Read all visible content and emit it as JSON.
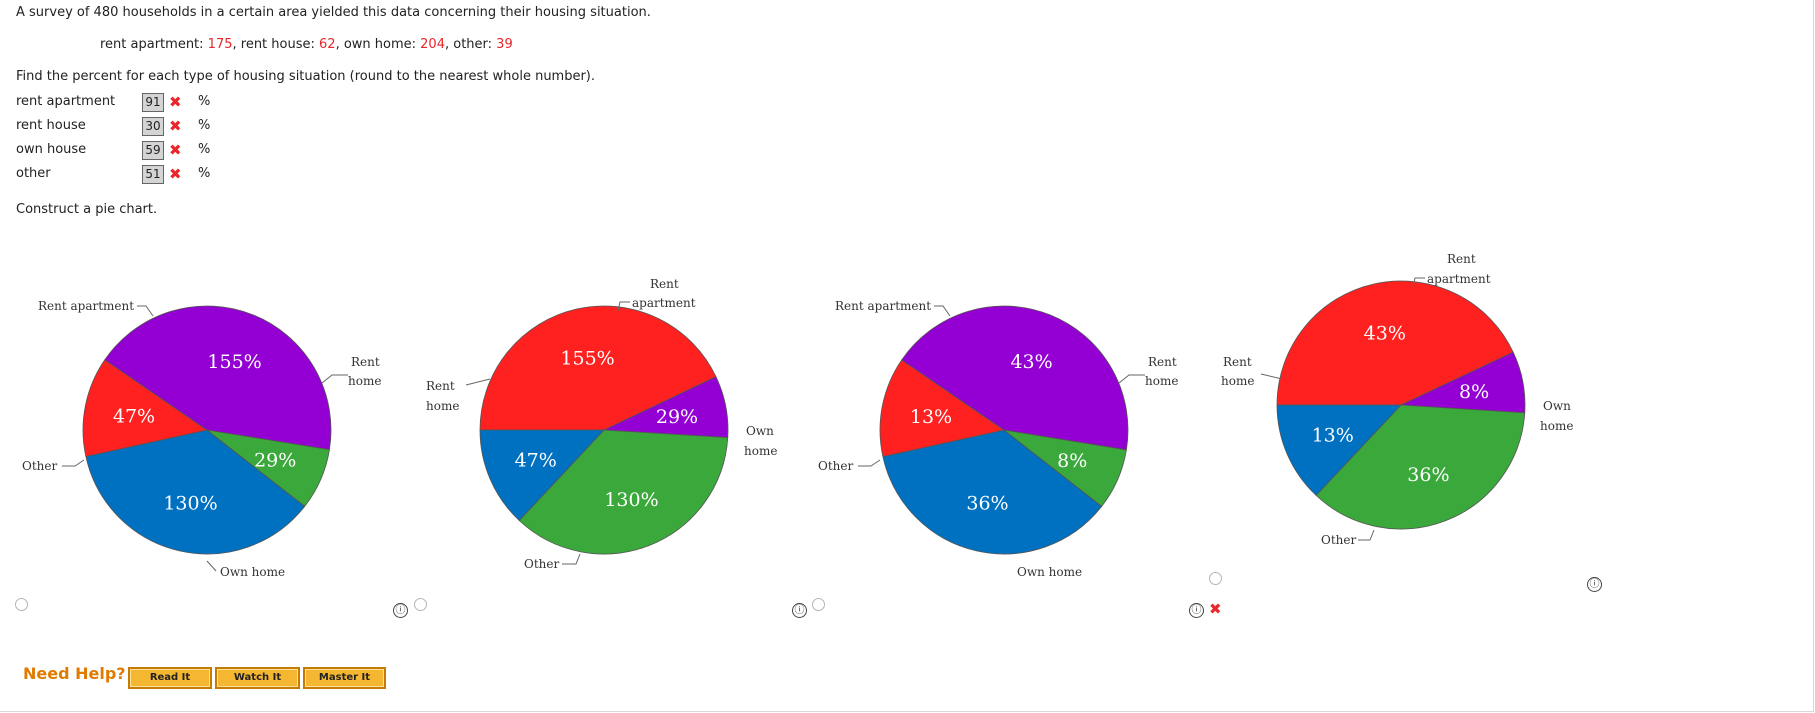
{
  "question": {
    "intro": "A survey of 480 households in a certain area yielded this data concerning their housing situation.",
    "data_line": {
      "ra_label": "rent apartment: ",
      "ra_value": "175",
      "rh_label": ", rent house: ",
      "rh_value": "62",
      "oh_label": ", own home: ",
      "oh_value": "204",
      "ot_label": ", other: ",
      "ot_value": "39"
    },
    "find_text": "Find the percent for each type of housing situation (round to the nearest whole number).",
    "answers": [
      {
        "label": "rent apartment",
        "value": "91",
        "unit": "%"
      },
      {
        "label": "rent house",
        "value": "30",
        "unit": "%"
      },
      {
        "label": "own house",
        "value": "59",
        "unit": "%"
      },
      {
        "label": "other",
        "value": "51",
        "unit": "%"
      }
    ],
    "construct_text": "Construct a pie chart."
  },
  "chart_data": [
    {
      "type": "pie",
      "slices": [
        {
          "name": "Rent apartment",
          "label": "130%",
          "value": 130,
          "color": "#0070c0"
        },
        {
          "name": "Rent home",
          "label": "47%",
          "value": 47,
          "color": "#ff2020"
        },
        {
          "name": "Own home",
          "label": "155%",
          "value": 155,
          "color": "#9400d3"
        },
        {
          "name": "Other",
          "label": "29%",
          "value": 29,
          "color": "#3aa83a"
        }
      ]
    },
    {
      "type": "pie",
      "slices": [
        {
          "name": "Rent apartment",
          "label": "155%",
          "value": 155,
          "color": "#ff2020"
        },
        {
          "name": "Own home",
          "label": "29%",
          "value": 29,
          "color": "#9400d3"
        },
        {
          "name": "Other",
          "label": "130%",
          "value": 130,
          "color": "#3aa83a"
        },
        {
          "name": "Rent home",
          "label": "47%",
          "value": 47,
          "color": "#0070c0"
        }
      ]
    },
    {
      "type": "pie",
      "slices": [
        {
          "name": "Rent apartment",
          "label": "36%",
          "value": 36,
          "color": "#0070c0"
        },
        {
          "name": "Rent home",
          "label": "13%",
          "value": 13,
          "color": "#ff2020"
        },
        {
          "name": "Own home",
          "label": "43%",
          "value": 43,
          "color": "#9400d3"
        },
        {
          "name": "Other",
          "label": "8%",
          "value": 8,
          "color": "#3aa83a"
        }
      ]
    },
    {
      "type": "pie",
      "slices": [
        {
          "name": "Rent apartment",
          "label": "43%",
          "value": 43,
          "color": "#ff2020"
        },
        {
          "name": "Own home",
          "label": "8%",
          "value": 8,
          "color": "#9400d3"
        },
        {
          "name": "Other",
          "label": "36%",
          "value": 36,
          "color": "#3aa83a"
        },
        {
          "name": "Rent home",
          "label": "13%",
          "value": 13,
          "color": "#0070c0"
        }
      ]
    }
  ],
  "chart_labels": {
    "c1": {
      "ra": "Rent apartment",
      "rh1": "Rent",
      "rh2": "home",
      "oh": "Own home",
      "ot": "Other"
    },
    "c2": {
      "ra1": "Rent",
      "ra2": "apartment",
      "rh1": "Rent",
      "rh2": "home",
      "oh1": "Own",
      "oh2": "home",
      "ot": "Other"
    },
    "c3": {
      "ra": "Rent apartment",
      "rh1": "Rent",
      "rh2": "home",
      "oh": "Own home",
      "ot": "Other"
    },
    "c4": {
      "ra1": "Rent",
      "ra2": "apartment",
      "rh1": "Rent",
      "rh2": "home",
      "oh1": "Own",
      "oh2": "home",
      "ot": "Other"
    }
  },
  "help": {
    "label": "Need Help?",
    "read": "Read It",
    "watch": "Watch It",
    "master": "Master It"
  },
  "icons": {
    "info": "ⓘ",
    "wrong": "✖"
  },
  "colors": {
    "correct_red": "#e8272c",
    "help_orange": "#e07b00"
  }
}
